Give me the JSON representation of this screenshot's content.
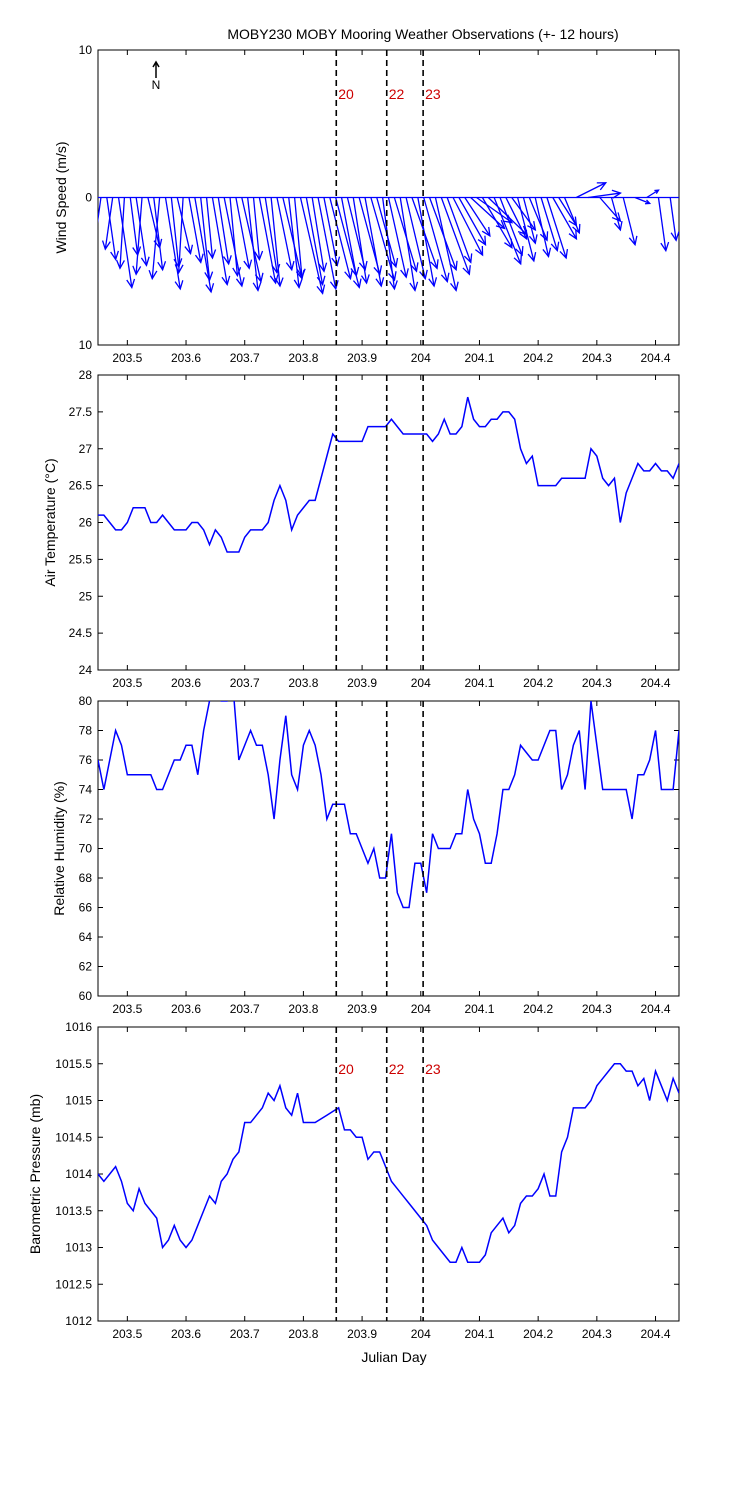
{
  "chart_data": [
    {
      "type": "quiver",
      "title": "MOBY230 MOBY Mooring Weather Observations (+- 12 hours)",
      "xlabel": "",
      "ylabel": "Wind Speed (m/s)",
      "north_label": "N",
      "xlim": [
        203.45,
        204.44
      ],
      "ylim": [
        -10,
        10
      ],
      "xticks": [
        203.5,
        203.6,
        203.7,
        203.8,
        203.9,
        204,
        204.1,
        204.2,
        204.3,
        204.4
      ],
      "xtick_labels": [
        "203.5",
        "203.6",
        "203.7",
        "203.8",
        "203.9",
        "204",
        "204.1",
        "204.2",
        "204.3",
        "204.4"
      ],
      "yticks": [
        10,
        0,
        -10
      ],
      "ytick_labels": [
        "10",
        "0",
        "10"
      ],
      "vector_data_units": "m/s (u east, v north)",
      "x": [
        203.455,
        203.465,
        203.475,
        203.485,
        203.495,
        203.505,
        203.515,
        203.525,
        203.535,
        203.545,
        203.555,
        203.565,
        203.575,
        203.585,
        203.595,
        203.605,
        203.615,
        203.625,
        203.635,
        203.645,
        203.655,
        203.665,
        203.675,
        203.685,
        203.695,
        203.705,
        203.715,
        203.725,
        203.735,
        203.745,
        203.755,
        203.765,
        203.775,
        203.785,
        203.795,
        203.805,
        203.815,
        203.825,
        203.835,
        203.845,
        203.855,
        203.865,
        203.875,
        203.885,
        203.895,
        203.905,
        203.915,
        203.925,
        203.935,
        203.945,
        203.955,
        203.965,
        203.975,
        203.985,
        203.995,
        204.005,
        204.015,
        204.025,
        204.035,
        204.045,
        204.055,
        204.065,
        204.075,
        204.085,
        204.095,
        204.105,
        204.115,
        204.125,
        204.135,
        204.145,
        204.155,
        204.165,
        204.175,
        204.185,
        204.195,
        204.205,
        204.215,
        204.225,
        204.235,
        204.245,
        204.265,
        204.285,
        204.305,
        204.325,
        204.345,
        204.365,
        204.385,
        204.405,
        204.425
      ],
      "u": [
        -0.8,
        0.6,
        -0.5,
        0.9,
        -0.3,
        0.5,
        0.7,
        -0.4,
        0.8,
        0.6,
        -0.5,
        1.0,
        0.5,
        0.9,
        -0.3,
        0.8,
        1.1,
        0.6,
        0.4,
        1.0,
        0.7,
        1.2,
        0.5,
        0.9,
        1.3,
        0.7,
        0.4,
        1.1,
        0.8,
        0.6,
        1.0,
        1.3,
        0.7,
        0.5,
        1.5,
        1.1,
        0.8,
        1.2,
        0.9,
        1.4,
        1.6,
        1.0,
        1.2,
        0.9,
        1.4,
        1.1,
        1.6,
        1.3,
        0.8,
        1.2,
        1.5,
        1.0,
        1.3,
        1.7,
        1.1,
        1.6,
        1.8,
        1.4,
        1.9,
        1.6,
        2.0,
        1.8,
        1.7,
        2.3,
        2.4,
        2.0,
        2.6,
        1.8,
        1.5,
        1.4,
        1.6,
        1.1,
        0.8,
        1.2,
        0.9,
        1.1,
        1.3,
        1.6,
        1.2,
        1.0,
        2.0,
        2.2,
        1.4,
        0.6,
        0.8,
        1.0,
        0.8,
        0.5,
        0.4
      ],
      "v": [
        -5.8,
        -4.2,
        -3.5,
        -6.1,
        -4.8,
        -3.9,
        -4.6,
        -5.2,
        -3.4,
        -4.9,
        -5.5,
        -6.2,
        -4.7,
        -3.8,
        -5.1,
        -4.4,
        -6.4,
        -5.6,
        -4.1,
        -5.9,
        -4.5,
        -6.0,
        -5.3,
        -4.8,
        -5.7,
        -6.3,
        -4.2,
        -5.8,
        -5.1,
        -6.0,
        -4.9,
        -5.5,
        -6.1,
        -5.4,
        -6.5,
        -5.9,
        -5.0,
        -6.2,
        -4.6,
        -5.5,
        -6.1,
        -5.3,
        -4.9,
        -5.8,
        -5.2,
        -6.0,
        -5.6,
        -4.7,
        -6.2,
        -5.4,
        -5.0,
        -6.3,
        -5.5,
        -4.8,
        -6.0,
        -5.7,
        -4.9,
        -6.3,
        -5.2,
        -4.4,
        -3.9,
        -3.2,
        -2.6,
        -2.1,
        -1.7,
        -3.4,
        -2.5,
        -4.5,
        -3.9,
        -2.8,
        -2.2,
        -4.3,
        -3.1,
        -2.9,
        -4.0,
        -3.6,
        -4.1,
        -2.8,
        -1.9,
        -2.4,
        1.0,
        0.3,
        -1.6,
        -2.2,
        -3.2,
        -0.4,
        0.5,
        -3.6,
        -2.9
      ]
    },
    {
      "type": "line",
      "title": "",
      "xlabel": "",
      "ylabel": "Air Temperature (°C)",
      "xlim": [
        203.45,
        204.44
      ],
      "ylim": [
        24,
        28
      ],
      "xticks": [
        203.5,
        203.6,
        203.7,
        203.8,
        203.9,
        204,
        204.1,
        204.2,
        204.3,
        204.4
      ],
      "xtick_labels": [
        "203.5",
        "203.6",
        "203.7",
        "203.8",
        "203.9",
        "204",
        "204.1",
        "204.2",
        "204.3",
        "204.4"
      ],
      "yticks": [
        24,
        24.5,
        25,
        25.5,
        26,
        26.5,
        27,
        27.5,
        28
      ],
      "ytick_labels": [
        "24",
        "24.5",
        "25",
        "25.5",
        "26",
        "26.5",
        "27",
        "27.5",
        "28"
      ],
      "x": [
        203.45,
        203.46,
        203.47,
        203.48,
        203.49,
        203.5,
        203.51,
        203.52,
        203.53,
        203.54,
        203.55,
        203.56,
        203.57,
        203.58,
        203.59,
        203.6,
        203.61,
        203.62,
        203.63,
        203.64,
        203.65,
        203.66,
        203.67,
        203.68,
        203.69,
        203.7,
        203.71,
        203.72,
        203.73,
        203.74,
        203.75,
        203.76,
        203.77,
        203.78,
        203.79,
        203.8,
        203.81,
        203.82,
        203.83,
        203.84,
        203.85,
        203.86,
        203.87,
        203.88,
        203.89,
        203.9,
        203.91,
        203.92,
        203.93,
        203.94,
        203.95,
        203.96,
        203.97,
        203.98,
        203.99,
        204.0,
        204.01,
        204.02,
        204.03,
        204.04,
        204.05,
        204.06,
        204.07,
        204.08,
        204.09,
        204.1,
        204.11,
        204.12,
        204.13,
        204.14,
        204.15,
        204.16,
        204.17,
        204.18,
        204.19,
        204.2,
        204.21,
        204.22,
        204.23,
        204.24,
        204.25,
        204.26,
        204.27,
        204.28,
        204.29,
        204.3,
        204.31,
        204.32,
        204.33,
        204.34,
        204.35,
        204.36,
        204.37,
        204.38,
        204.39,
        204.4,
        204.41,
        204.42,
        204.43,
        204.44
      ],
      "y": [
        26.1,
        26.1,
        26.0,
        25.9,
        25.9,
        26.0,
        26.2,
        26.2,
        26.2,
        26.0,
        26.0,
        26.1,
        26.0,
        25.9,
        25.9,
        25.9,
        26.0,
        26.0,
        25.9,
        25.7,
        25.9,
        25.8,
        25.6,
        25.6,
        25.6,
        25.8,
        25.9,
        25.9,
        25.9,
        26.0,
        26.3,
        26.5,
        26.3,
        25.9,
        26.1,
        26.2,
        26.3,
        26.3,
        26.6,
        26.9,
        27.2,
        27.1,
        27.1,
        27.1,
        27.1,
        27.1,
        27.3,
        27.3,
        27.3,
        27.3,
        27.4,
        27.3,
        27.2,
        27.2,
        27.2,
        27.2,
        27.2,
        27.1,
        27.2,
        27.4,
        27.2,
        27.2,
        27.3,
        27.7,
        27.4,
        27.3,
        27.3,
        27.4,
        27.4,
        27.5,
        27.5,
        27.4,
        27.0,
        26.8,
        26.9,
        26.5,
        26.5,
        26.5,
        26.5,
        26.6,
        26.6,
        26.6,
        26.6,
        26.6,
        27.0,
        26.9,
        26.6,
        26.5,
        26.6,
        26.0,
        26.4,
        26.6,
        26.8,
        26.7,
        26.7,
        26.8,
        26.7,
        26.7,
        26.6,
        26.8
      ]
    },
    {
      "type": "line",
      "title": "",
      "xlabel": "",
      "ylabel": "Relative Humidity (%)",
      "xlim": [
        203.45,
        204.44
      ],
      "ylim": [
        60,
        80
      ],
      "xticks": [
        203.5,
        203.6,
        203.7,
        203.8,
        203.9,
        204,
        204.1,
        204.2,
        204.3,
        204.4
      ],
      "xtick_labels": [
        "203.5",
        "203.6",
        "203.7",
        "203.8",
        "203.9",
        "204",
        "204.1",
        "204.2",
        "204.3",
        "204.4"
      ],
      "yticks": [
        60,
        62,
        64,
        66,
        68,
        70,
        72,
        74,
        76,
        78,
        80
      ],
      "ytick_labels": [
        "60",
        "62",
        "64",
        "66",
        "68",
        "70",
        "72",
        "74",
        "76",
        "78",
        "80"
      ],
      "x": [
        203.45,
        203.46,
        203.47,
        203.48,
        203.49,
        203.5,
        203.51,
        203.52,
        203.53,
        203.54,
        203.55,
        203.56,
        203.57,
        203.58,
        203.59,
        203.6,
        203.61,
        203.62,
        203.63,
        203.64,
        203.65,
        203.66,
        203.67,
        203.68,
        203.69,
        203.7,
        203.71,
        203.72,
        203.73,
        203.74,
        203.75,
        203.76,
        203.77,
        203.78,
        203.79,
        203.8,
        203.81,
        203.82,
        203.83,
        203.84,
        203.85,
        203.86,
        203.87,
        203.88,
        203.89,
        203.9,
        203.91,
        203.92,
        203.93,
        203.94,
        203.95,
        203.96,
        203.97,
        203.98,
        203.99,
        204.0,
        204.01,
        204.02,
        204.03,
        204.04,
        204.05,
        204.06,
        204.07,
        204.08,
        204.09,
        204.1,
        204.11,
        204.12,
        204.13,
        204.14,
        204.15,
        204.16,
        204.17,
        204.18,
        204.19,
        204.2,
        204.21,
        204.22,
        204.23,
        204.24,
        204.25,
        204.26,
        204.27,
        204.28,
        204.29,
        204.3,
        204.31,
        204.32,
        204.33,
        204.34,
        204.35,
        204.36,
        204.37,
        204.38,
        204.39,
        204.4,
        204.41,
        204.42,
        204.43,
        204.44
      ],
      "y": [
        76,
        74,
        76,
        78,
        77,
        75,
        75,
        75,
        75,
        75,
        74,
        74,
        75,
        76,
        76,
        77,
        77,
        75,
        78,
        80,
        81,
        80,
        80,
        81,
        76,
        77,
        78,
        77,
        77,
        75,
        72,
        76,
        79,
        75,
        74,
        77,
        78,
        77,
        75,
        72,
        73,
        73,
        73,
        71,
        71,
        70,
        69,
        70,
        68,
        68,
        71,
        67,
        66,
        66,
        69,
        69,
        67,
        71,
        70,
        70,
        70,
        71,
        71,
        74,
        72,
        71,
        69,
        69,
        71,
        74,
        74,
        75,
        77,
        76.5,
        76,
        76,
        77,
        78,
        78,
        74,
        75,
        77,
        78,
        74,
        80,
        77,
        74,
        74,
        74,
        74,
        74,
        72,
        75,
        75,
        76,
        78,
        74,
        74,
        74,
        78
      ],
      "y_plot_limited_to_visible": true
    },
    {
      "type": "line",
      "title": "",
      "xlabel": "Julian Day",
      "ylabel": "Barometric Pressure (mb)",
      "xlim": [
        203.45,
        204.44
      ],
      "ylim": [
        1012,
        1016
      ],
      "xticks": [
        203.5,
        203.6,
        203.7,
        203.8,
        203.9,
        204,
        204.1,
        204.2,
        204.3,
        204.4
      ],
      "xtick_labels": [
        "203.5",
        "203.6",
        "203.7",
        "203.8",
        "203.9",
        "204",
        "204.1",
        "204.2",
        "204.3",
        "204.4"
      ],
      "yticks": [
        1012,
        1012.5,
        1013,
        1013.5,
        1014,
        1014.5,
        1015,
        1015.5,
        1016
      ],
      "ytick_labels": [
        "1012",
        "1012.5",
        "1013",
        "1013.5",
        "1014",
        "1014.5",
        "1015",
        "1015.5",
        "1016"
      ],
      "x": [
        203.45,
        203.46,
        203.47,
        203.48,
        203.49,
        203.5,
        203.51,
        203.52,
        203.53,
        203.54,
        203.55,
        203.56,
        203.57,
        203.58,
        203.59,
        203.6,
        203.61,
        203.62,
        203.63,
        203.64,
        203.65,
        203.66,
        203.67,
        203.68,
        203.69,
        203.7,
        203.71,
        203.72,
        203.73,
        203.74,
        203.75,
        203.76,
        203.77,
        203.78,
        203.79,
        203.8,
        203.81,
        203.82,
        203.83,
        203.84,
        203.85,
        203.86,
        203.87,
        203.88,
        203.89,
        203.9,
        203.91,
        203.92,
        203.93,
        203.94,
        203.95,
        203.96,
        203.97,
        203.98,
        203.99,
        204.0,
        204.01,
        204.02,
        204.03,
        204.04,
        204.05,
        204.06,
        204.07,
        204.08,
        204.09,
        204.1,
        204.11,
        204.12,
        204.13,
        204.14,
        204.15,
        204.16,
        204.17,
        204.18,
        204.19,
        204.2,
        204.21,
        204.22,
        204.23,
        204.24,
        204.25,
        204.26,
        204.27,
        204.28,
        204.29,
        204.3,
        204.31,
        204.32,
        204.33,
        204.34,
        204.35,
        204.36,
        204.37,
        204.38,
        204.39,
        204.4,
        204.41,
        204.42,
        204.43,
        204.44
      ],
      "y": [
        1014.0,
        1013.9,
        1014.0,
        1014.1,
        1013.9,
        1013.6,
        1013.5,
        1013.8,
        1013.6,
        1013.5,
        1013.4,
        1013.0,
        1013.1,
        1013.3,
        1013.1,
        1013.0,
        1013.1,
        1013.3,
        1013.5,
        1013.7,
        1013.6,
        1013.9,
        1014.0,
        1014.2,
        1014.3,
        1014.7,
        1014.7,
        1014.8,
        1014.9,
        1015.1,
        1015.0,
        1015.2,
        1014.9,
        1014.8,
        1015.1,
        1014.7,
        1014.7,
        1014.7,
        1014.75,
        1014.8,
        1014.85,
        1014.9,
        1014.6,
        1014.6,
        1014.5,
        1014.5,
        1014.2,
        1014.3,
        1014.3,
        1014.1,
        1013.9,
        1013.8,
        1013.7,
        1013.6,
        1013.5,
        1013.4,
        1013.3,
        1013.1,
        1013.0,
        1012.9,
        1012.8,
        1012.8,
        1013.0,
        1012.8,
        1012.8,
        1012.8,
        1012.9,
        1013.2,
        1013.3,
        1013.4,
        1013.2,
        1013.3,
        1013.6,
        1013.7,
        1013.7,
        1013.8,
        1014.0,
        1013.7,
        1013.7,
        1014.3,
        1014.5,
        1014.9,
        1014.9,
        1014.9,
        1015.0,
        1015.2,
        1015.3,
        1015.4,
        1015.5,
        1015.5,
        1015.4,
        1015.4,
        1015.2,
        1015.3,
        1015.0,
        1015.4,
        1015.2,
        1015.0,
        1015.3,
        1015.1
      ]
    }
  ],
  "event_markers": [
    {
      "label": "20",
      "x": 203.856
    },
    {
      "label": "22",
      "x": 203.942
    },
    {
      "label": "23",
      "x": 204.004
    }
  ],
  "colors": {
    "series": "#0000ff",
    "marker_text": "#cc0000",
    "axes": "#000000",
    "background": "#ffffff"
  }
}
